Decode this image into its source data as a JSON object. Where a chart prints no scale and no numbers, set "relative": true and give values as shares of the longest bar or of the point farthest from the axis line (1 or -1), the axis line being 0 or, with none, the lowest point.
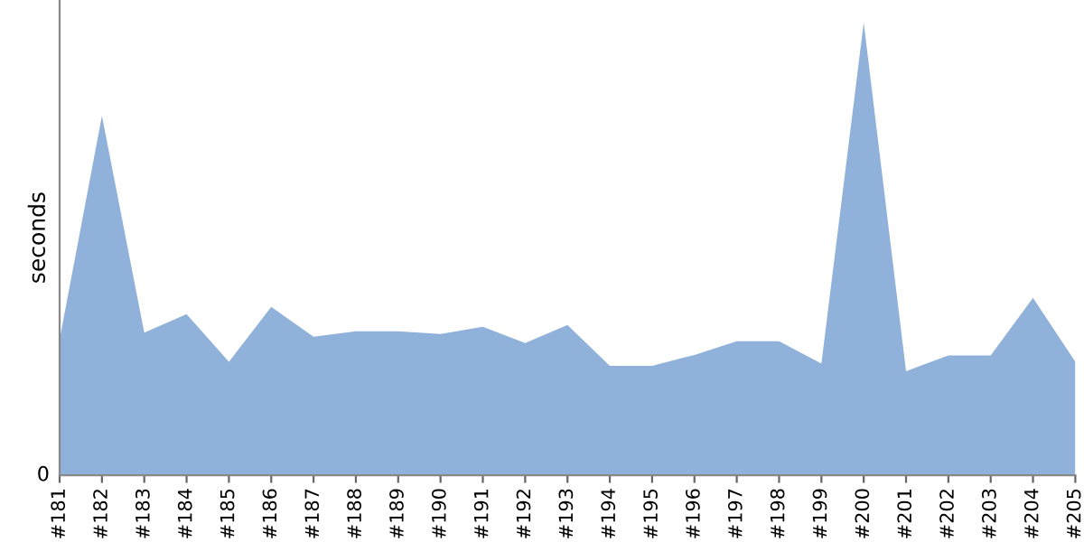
{
  "chart_data": {
    "type": "area",
    "ylabel": "seconds",
    "relative": true,
    "annotations": [
      "0"
    ],
    "color": "#8fb1da",
    "grid": false,
    "legend": false,
    "categories": [
      "#181",
      "#182",
      "#183",
      "#184",
      "#185",
      "#186",
      "#187",
      "#188",
      "#189",
      "#190",
      "#191",
      "#192",
      "#193",
      "#194",
      "#195",
      "#196",
      "#197",
      "#198",
      "#199",
      "#200",
      "#201",
      "#202",
      "#203",
      "#204",
      "#205"
    ],
    "values": [
      0.3,
      0.794,
      0.315,
      0.356,
      0.251,
      0.372,
      0.306,
      0.318,
      0.318,
      0.312,
      0.328,
      0.292,
      0.332,
      0.242,
      0.242,
      0.266,
      0.296,
      0.296,
      0.247,
      1,
      0.23,
      0.265,
      0.265,
      0.392,
      0.251
    ]
  }
}
